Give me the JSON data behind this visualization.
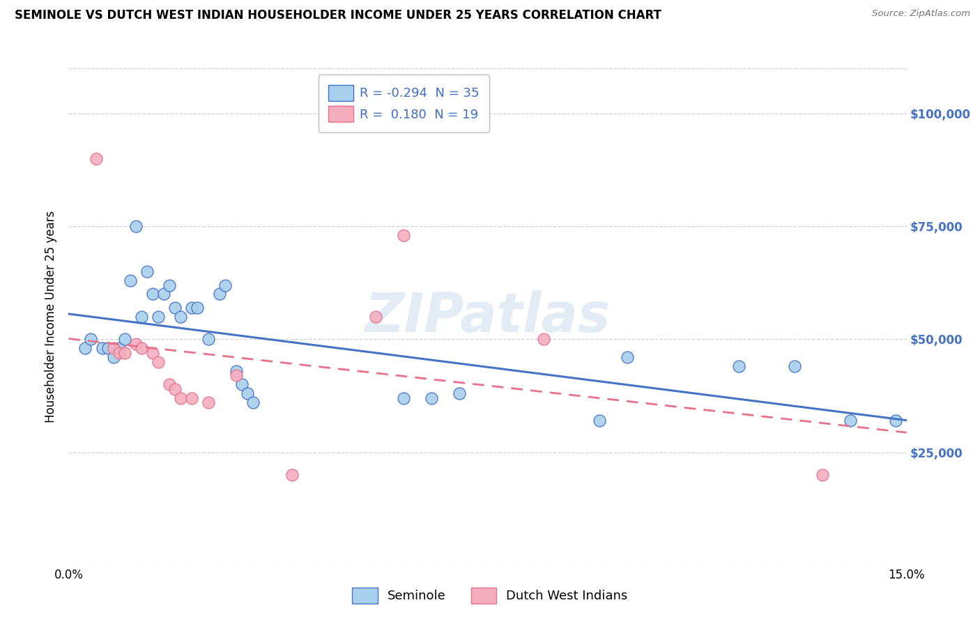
{
  "title": "SEMINOLE VS DUTCH WEST INDIAN HOUSEHOLDER INCOME UNDER 25 YEARS CORRELATION CHART",
  "source": "Source: ZipAtlas.com",
  "ylabel": "Householder Income Under 25 years",
  "xmin": 0.0,
  "xmax": 0.15,
  "ymin": 0,
  "ymax": 110000,
  "yticks": [
    25000,
    50000,
    75000,
    100000
  ],
  "ytick_labels": [
    "$25,000",
    "$50,000",
    "$75,000",
    "$100,000"
  ],
  "legend_top_labels": [
    "R = -0.294  N = 35",
    "R =  0.180  N = 19"
  ],
  "legend_bottom_labels": [
    "Seminole",
    "Dutch West Indians"
  ],
  "color_seminole_fill": "#A8D0ED",
  "color_seminole_edge": "#4472C4",
  "color_dutch_fill": "#F4AEC0",
  "color_dutch_edge": "#E8718A",
  "color_line_seminole": "#4472C4",
  "color_line_dutch": "#E8718A",
  "color_ytick": "#4472C4",
  "watermark": "ZIPatlas",
  "seminole_x": [
    0.003,
    0.004,
    0.006,
    0.007,
    0.008,
    0.009,
    0.01,
    0.011,
    0.012,
    0.013,
    0.014,
    0.015,
    0.016,
    0.017,
    0.018,
    0.019,
    0.02,
    0.022,
    0.023,
    0.025,
    0.027,
    0.028,
    0.03,
    0.031,
    0.032,
    0.033,
    0.06,
    0.065,
    0.07,
    0.095,
    0.1,
    0.12,
    0.13,
    0.14,
    0.148
  ],
  "seminole_y": [
    48000,
    50000,
    48000,
    48000,
    46000,
    48000,
    50000,
    63000,
    75000,
    55000,
    65000,
    60000,
    55000,
    60000,
    62000,
    57000,
    55000,
    57000,
    57000,
    50000,
    60000,
    62000,
    43000,
    40000,
    38000,
    36000,
    37000,
    37000,
    38000,
    32000,
    46000,
    44000,
    44000,
    32000,
    32000
  ],
  "dutch_x": [
    0.005,
    0.008,
    0.009,
    0.01,
    0.012,
    0.013,
    0.015,
    0.016,
    0.018,
    0.019,
    0.02,
    0.022,
    0.025,
    0.03,
    0.04,
    0.055,
    0.06,
    0.085,
    0.135
  ],
  "dutch_y": [
    90000,
    48000,
    47000,
    47000,
    49000,
    48000,
    47000,
    45000,
    40000,
    39000,
    37000,
    37000,
    36000,
    42000,
    20000,
    55000,
    73000,
    50000,
    20000
  ]
}
